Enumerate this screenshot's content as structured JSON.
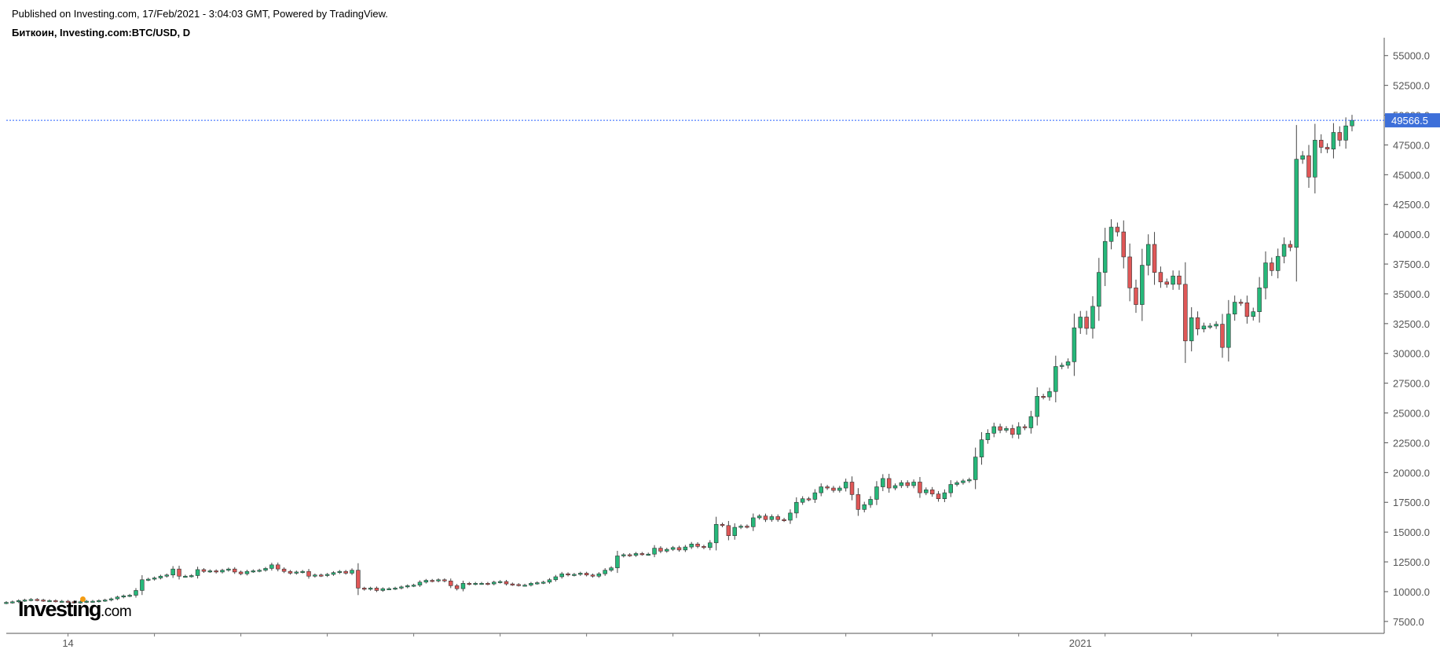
{
  "header": {
    "published": "Published on Investing.com, 17/Feb/2021 - 3:04:03 GMT, Powered by TradingView.",
    "symbol": "Биткоин, Investing.com:BTC/USD, D"
  },
  "logo": {
    "brand": "Investing",
    "suffix": ".com"
  },
  "colors": {
    "up": "#26b87a",
    "down": "#e05757",
    "wick": "#444444",
    "price_line": "#2962ff",
    "price_tag": "#3d6fd9"
  },
  "chart_data": {
    "type": "candlestick",
    "title": "Биткоин, Investing.com:BTC/USD, D",
    "ylim": [
      6500,
      56500
    ],
    "y_ticks": [
      "55000.0",
      "52500.0",
      "50000.0",
      "47500.0",
      "45000.0",
      "42500.0",
      "40000.0",
      "37500.0",
      "35000.0",
      "32500.0",
      "30000.0",
      "27500.0",
      "25000.0",
      "22500.0",
      "20000.0",
      "17500.0",
      "15000.0",
      "12500.0",
      "10000.0",
      "7500.0"
    ],
    "x_labels": [
      {
        "label": "14",
        "index": 10
      },
      {
        "label": "2021",
        "index": 174
      }
    ],
    "last_price": 49566.5,
    "last_price_label": "49566.5",
    "closes": [
      9100,
      9150,
      9250,
      9300,
      9350,
      9300,
      9250,
      9250,
      9200,
      9200,
      9150,
      9100,
      9150,
      9200,
      9200,
      9250,
      9300,
      9400,
      9550,
      9650,
      9700,
      10100,
      11000,
      11050,
      11150,
      11300,
      11400,
      11900,
      11300,
      11300,
      11350,
      11850,
      11700,
      11750,
      11650,
      11800,
      11900,
      11650,
      11500,
      11700,
      11750,
      11800,
      11950,
      12250,
      11900,
      11700,
      11550,
      11650,
      11700,
      11300,
      11400,
      11350,
      11450,
      11600,
      11700,
      11550,
      11800,
      10300,
      10200,
      10300,
      10100,
      10250,
      10250,
      10300,
      10400,
      10500,
      10550,
      10800,
      10950,
      10900,
      11000,
      10900,
      10500,
      10250,
      10700,
      10650,
      10700,
      10700,
      10650,
      10800,
      10850,
      10650,
      10600,
      10550,
      10550,
      10700,
      10750,
      10800,
      11000,
      11250,
      11500,
      11400,
      11450,
      11550,
      11400,
      11300,
      11500,
      11800,
      12000,
      13000,
      13100,
      13050,
      13200,
      13150,
      13150,
      13650,
      13400,
      13550,
      13700,
      13500,
      13750,
      14000,
      13800,
      13700,
      14100,
      15650,
      15550,
      14700,
      15400,
      15500,
      15450,
      16200,
      16350,
      16050,
      16300,
      16050,
      16000,
      16600,
      17500,
      17800,
      17750,
      18300,
      18800,
      18700,
      18500,
      18700,
      19200,
      18150,
      16900,
      17300,
      17750,
      18800,
      19500,
      18700,
      18900,
      19150,
      18900,
      19200,
      18300,
      18550,
      18200,
      17800,
      18300,
      19000,
      19150,
      19300,
      19400,
      21300,
      22750,
      23300,
      23850,
      23550,
      23700,
      23200,
      23850,
      23750,
      24700,
      26400,
      26350,
      26800,
      28900,
      29000,
      29300,
      32150,
      33050,
      32100,
      33950,
      36800,
      39400,
      40600,
      40200,
      38100,
      35500,
      34100,
      37400,
      39150,
      36800,
      36000,
      35800,
      36500,
      35800,
      31050,
      33000,
      32050,
      32300,
      32300,
      32450,
      30500,
      33300,
      34300,
      34250,
      33100,
      33500,
      35500,
      37600,
      36950,
      38150,
      39150,
      38900,
      46300,
      46600,
      44800,
      47900,
      47300,
      47150,
      48550,
      47900,
      49100,
      49566
    ]
  }
}
